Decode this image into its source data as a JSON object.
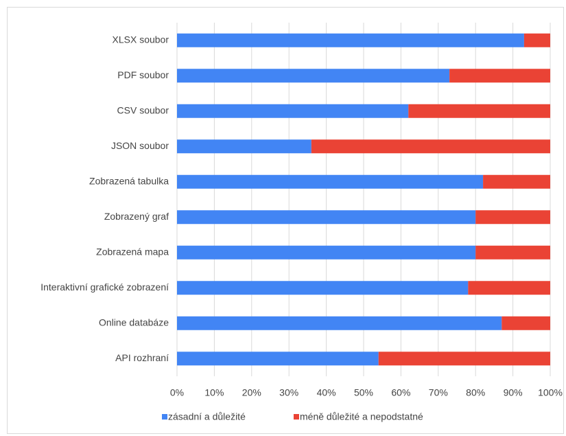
{
  "chart_data": {
    "type": "stacked-bar-horizontal",
    "categories": [
      "XLSX soubor",
      "PDF soubor",
      "CSV soubor",
      "JSON soubor",
      "Zobrazená tabulka",
      "Zobrazený graf",
      "Zobrazená mapa",
      "Interaktivní grafické zobrazení",
      "Online databáze",
      "API rozhraní"
    ],
    "series": [
      {
        "name": "zásadní a důležité",
        "color": "#4285f4",
        "values": [
          93,
          73,
          62,
          36,
          82,
          80,
          80,
          78,
          87,
          54
        ]
      },
      {
        "name": "méně důležité a nepodstatné",
        "color": "#ea4335",
        "values": [
          7,
          27,
          38,
          64,
          18,
          20,
          20,
          22,
          13,
          46
        ]
      }
    ],
    "xlim": [
      0,
      100
    ],
    "xticks": [
      {
        "value": 0,
        "label": "0%"
      },
      {
        "value": 10,
        "label": "10%"
      },
      {
        "value": 20,
        "label": "20%"
      },
      {
        "value": 30,
        "label": "30%"
      },
      {
        "value": 40,
        "label": "40%"
      },
      {
        "value": 50,
        "label": "50%"
      },
      {
        "value": 60,
        "label": "60%"
      },
      {
        "value": 70,
        "label": "70%"
      },
      {
        "value": 80,
        "label": "80%"
      },
      {
        "value": 90,
        "label": "90%"
      },
      {
        "value": 100,
        "label": "100%"
      }
    ],
    "grid": true,
    "legend": "bottom"
  }
}
